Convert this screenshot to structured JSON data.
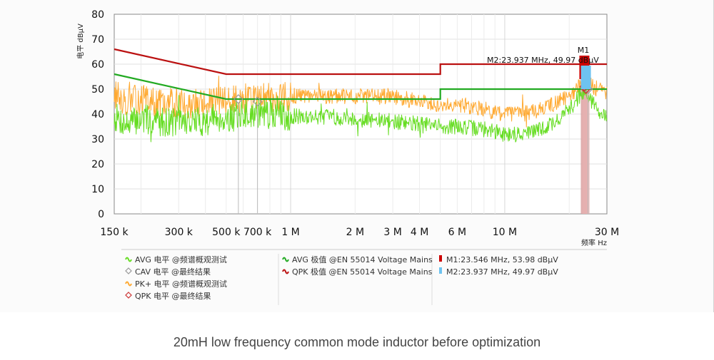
{
  "caption": "20mH low frequency common mode inductor before optimization",
  "chart_data": {
    "type": "line",
    "xscale": "log",
    "xlim": [
      0.15,
      30
    ],
    "ylim": [
      0,
      80
    ],
    "ylabel": "电平 dBµV",
    "xlabel": "频率 Hz",
    "yticks": [
      0,
      10,
      20,
      30,
      40,
      50,
      60,
      70,
      80
    ],
    "xticks": [
      {
        "v": 0.15,
        "label": "150 k"
      },
      {
        "v": 0.3,
        "label": "300 k"
      },
      {
        "v": 0.5,
        "label": "500 k"
      },
      {
        "v": 0.7,
        "label": "700 k"
      },
      {
        "v": 1,
        "label": "1 M"
      },
      {
        "v": 2,
        "label": "2 M"
      },
      {
        "v": 3,
        "label": "3 M"
      },
      {
        "v": 4,
        "label": "4 M"
      },
      {
        "v": 6,
        "label": "6 M"
      },
      {
        "v": 10,
        "label": "10 M"
      },
      {
        "v": 30,
        "label": "30 M"
      }
    ],
    "grid": true,
    "colors": {
      "avg": "#66dd22",
      "pk": "#ffaa33",
      "avg_limit": "#22aa22",
      "qpk_limit": "#bb1111",
      "m1": "#cc0000",
      "m2": "#6ec3f0"
    },
    "series": [
      {
        "name": "AVG 电平 @频谱概观测试",
        "kind": "measurement",
        "x": [
          0.15,
          0.17,
          0.2,
          0.25,
          0.3,
          0.35,
          0.4,
          0.45,
          0.5,
          0.6,
          0.7,
          0.8,
          1,
          1.5,
          2,
          3,
          4,
          5,
          6,
          8,
          10,
          12,
          15,
          18,
          21,
          23,
          24,
          25,
          27,
          30
        ],
        "y": [
          39,
          36,
          38,
          37,
          37,
          37,
          37,
          39,
          38,
          40,
          40,
          40,
          39,
          39,
          38,
          37,
          36,
          35,
          35,
          34,
          32,
          32,
          34,
          38,
          44,
          49,
          48,
          46,
          42,
          39
        ]
      },
      {
        "name": "PK+ 电平 @频谱概观测试",
        "kind": "measurement",
        "x": [
          0.15,
          0.17,
          0.2,
          0.25,
          0.3,
          0.35,
          0.4,
          0.45,
          0.5,
          0.6,
          0.7,
          0.8,
          1,
          1.5,
          2,
          3,
          4,
          5,
          6,
          8,
          10,
          12,
          15,
          18,
          21,
          23,
          24,
          25,
          27,
          30
        ],
        "y": [
          48,
          45,
          46,
          44,
          45,
          44,
          44,
          45,
          46,
          46,
          47,
          47,
          47,
          47,
          47,
          47,
          45,
          44,
          44,
          42,
          40,
          40,
          42,
          45,
          49,
          52,
          53,
          52,
          50,
          49
        ]
      },
      {
        "name": "AVG 极值 @EN 55014 Voltage Mains",
        "kind": "limit",
        "x": [
          0.15,
          0.5,
          0.5,
          5,
          5,
          30
        ],
        "y": [
          56,
          46,
          46,
          46,
          50,
          50
        ]
      },
      {
        "name": "QPK 极值 @EN 55014 Voltage Mains",
        "kind": "limit",
        "x": [
          0.15,
          0.5,
          0.5,
          5,
          5,
          30
        ],
        "y": [
          66,
          56,
          56,
          56,
          60,
          60
        ]
      }
    ],
    "cav_points": [
      {
        "x": 0.57,
        "y": 46
      },
      {
        "x": 0.7,
        "y": 45
      },
      {
        "x": 24.5,
        "y": 50
      }
    ],
    "qpk_points": [
      {
        "x": 23.546,
        "y": 51
      },
      {
        "x": 23.937,
        "y": 50
      }
    ],
    "markers": [
      {
        "id": "M1",
        "x": 23.546,
        "y": 53.98,
        "label": "M1:23.546 MHz, 53.98 dBµV"
      },
      {
        "id": "M2",
        "x": 23.937,
        "y": 49.97,
        "label": "M2:23.937 MHz, 49.97 dBµV"
      }
    ],
    "marker_tag": "M1",
    "marker_annotation": "M2:23.937 MHz, 49.97 dBµV",
    "legend": [
      {
        "symbol": "wave",
        "color": "#66dd22",
        "text": "AVG 电平 @频谱概观测试"
      },
      {
        "symbol": "diamond",
        "color": "#999999",
        "text": "CAV 电平 @最终结果"
      },
      {
        "symbol": "wave",
        "color": "#ffaa33",
        "text": "PK+ 电平 @频谱概观测试"
      },
      {
        "symbol": "diamond",
        "color": "#cc3333",
        "text": "QPK 电平 @最终结果"
      },
      {
        "symbol": "wave",
        "color": "#22aa22",
        "text": "AVG 极值 @EN 55014 Voltage Mains"
      },
      {
        "symbol": "wave",
        "color": "#bb1111",
        "text": "QPK 极值 @EN 55014 Voltage Mains"
      },
      {
        "symbol": "rect",
        "color": "#cc0000",
        "text": "M1:23.546 MHz, 53.98 dBµV"
      },
      {
        "symbol": "rect",
        "color": "#6ec3f0",
        "text": "M2:23.937 MHz, 49.97 dBµV"
      }
    ]
  }
}
